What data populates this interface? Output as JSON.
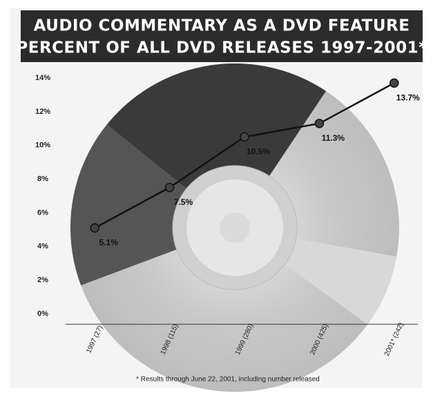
{
  "chart_data": {
    "type": "line",
    "title": "AUDIO COMMENTARY AS A DVD FEATURE",
    "subtitle": "PERCENT OF ALL DVD RELEASES 1997-2001*",
    "categories": [
      "1997 (27)",
      "1998 (115)",
      "1999 (280)",
      "2000 (425)",
      "2001* (242)"
    ],
    "series": [
      {
        "name": "Audio commentary",
        "color": "#111111",
        "values": [
          5.1,
          7.5,
          10.5,
          11.3,
          13.7
        ],
        "value_labels": [
          "5.1%",
          "7.5%",
          "10.5%",
          "11.3%",
          "13.7%"
        ]
      }
    ],
    "ylim": [
      0,
      14
    ],
    "yticks": [
      {
        "value": 0,
        "label": "0%"
      },
      {
        "value": 2,
        "label": "2%"
      },
      {
        "value": 4,
        "label": "4%"
      },
      {
        "value": 6,
        "label": "6%"
      },
      {
        "value": 8,
        "label": "8%"
      },
      {
        "value": 10,
        "label": "10%"
      },
      {
        "value": 12,
        "label": "12%"
      },
      {
        "value": 14,
        "label": "14%"
      }
    ],
    "grid": false,
    "footnote": "* Results through June 22, 2001, including number released"
  }
}
